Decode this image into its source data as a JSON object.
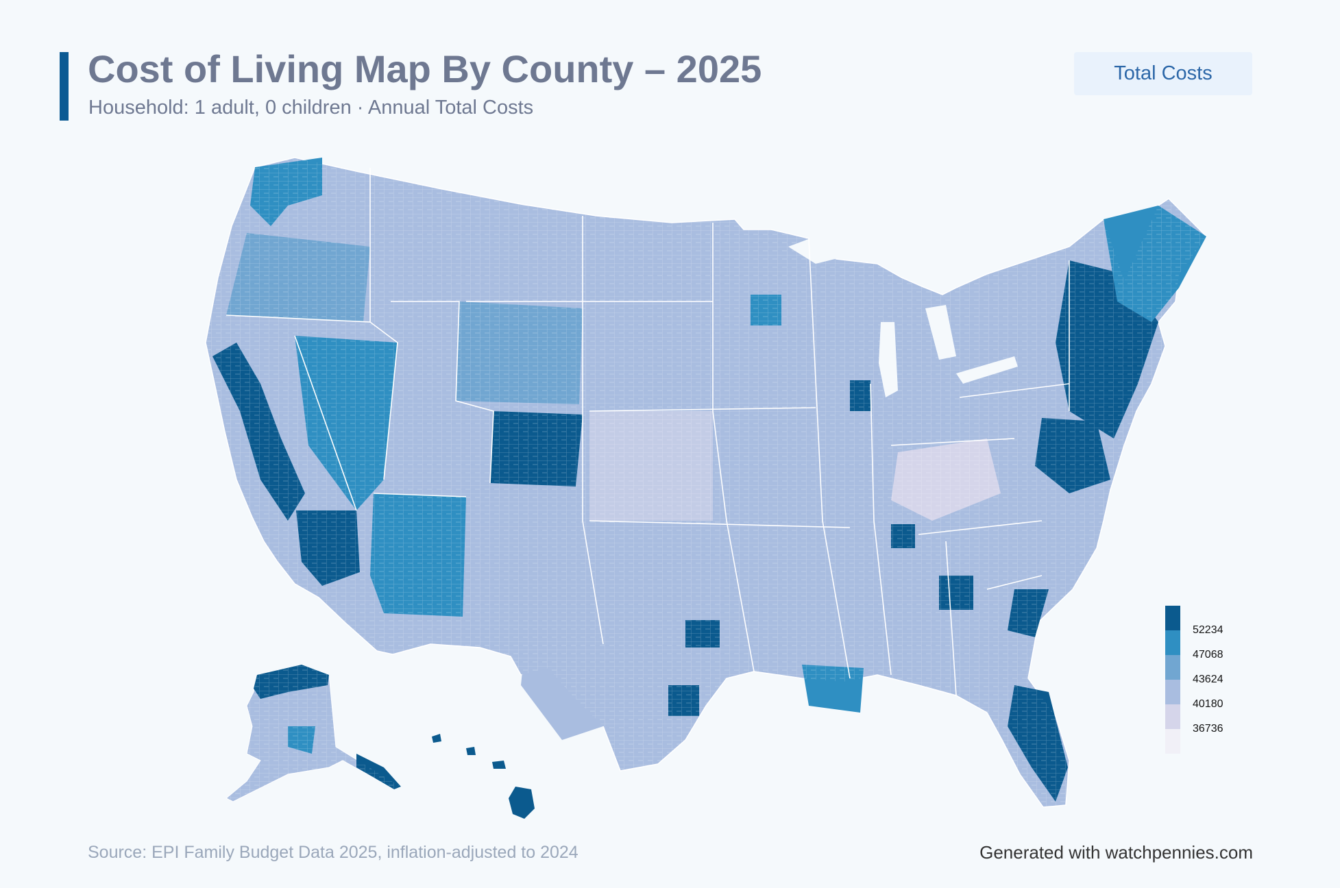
{
  "header": {
    "title": "Cost of Living Map By County – 2025",
    "subtitle": "Household: 1 adult, 0 children · Annual Total Costs"
  },
  "controls": {
    "metric_button_label": "Total Costs"
  },
  "legend": {
    "labels": [
      "52234",
      "47068",
      "43624",
      "40180",
      "36736"
    ],
    "colors": [
      "#0b5a8e",
      "#2f8fc2",
      "#71a6d1",
      "#a9bde0",
      "#d5d5ea",
      "#f1f0f7"
    ]
  },
  "footer": {
    "source": "Source: EPI Family Budget Data 2025, inflation-adjusted to 2024",
    "credit": "Generated with watchpennies.com"
  },
  "colors": {
    "accent": "#0b5a93",
    "title_text": "#6e7891",
    "button_bg": "#e9f2fc",
    "button_text": "#2c67a8",
    "page_bg": "#f5f9fc",
    "state_border": "#ffffff"
  }
}
